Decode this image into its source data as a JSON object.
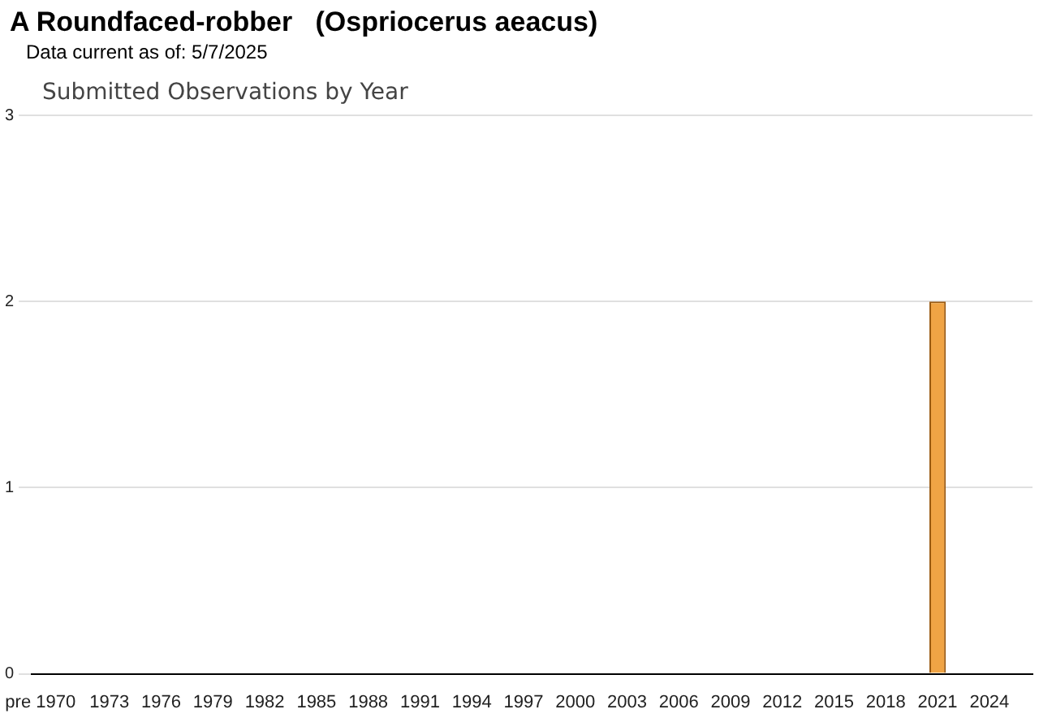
{
  "chart_data": {
    "type": "bar",
    "title": "A Roundfaced-robber   (Ospriocerus aeacus)",
    "subtitle": "Data current as of: 5/7/2025",
    "annotations": [
      "Submitted Observations by Year"
    ],
    "categories": [
      "pre 1970",
      null,
      null,
      null,
      "1973",
      null,
      null,
      "1976",
      null,
      null,
      "1979",
      null,
      null,
      "1982",
      null,
      null,
      "1985",
      null,
      null,
      "1988",
      null,
      null,
      "1991",
      null,
      null,
      "1994",
      null,
      null,
      "1997",
      null,
      null,
      "2000",
      null,
      null,
      "2003",
      null,
      null,
      "2006",
      null,
      null,
      "2009",
      null,
      null,
      "2012",
      null,
      null,
      "2015",
      null,
      null,
      "2018",
      null,
      null,
      "2021",
      null,
      null,
      "2024",
      null,
      null
    ],
    "values": [
      0,
      0,
      0,
      0,
      0,
      0,
      0,
      0,
      0,
      0,
      0,
      0,
      0,
      0,
      0,
      0,
      0,
      0,
      0,
      0,
      0,
      0,
      0,
      0,
      0,
      0,
      0,
      0,
      0,
      0,
      0,
      0,
      0,
      0,
      0,
      0,
      0,
      0,
      0,
      0,
      0,
      0,
      0,
      0,
      0,
      0,
      0,
      0,
      0,
      0,
      0,
      0,
      2,
      0,
      0,
      0,
      0,
      0
    ],
    "color": "#f0a445",
    "ylim": [
      0,
      3
    ],
    "yticks": [
      0,
      1,
      2,
      3
    ],
    "grid": "y",
    "legend": false
  }
}
